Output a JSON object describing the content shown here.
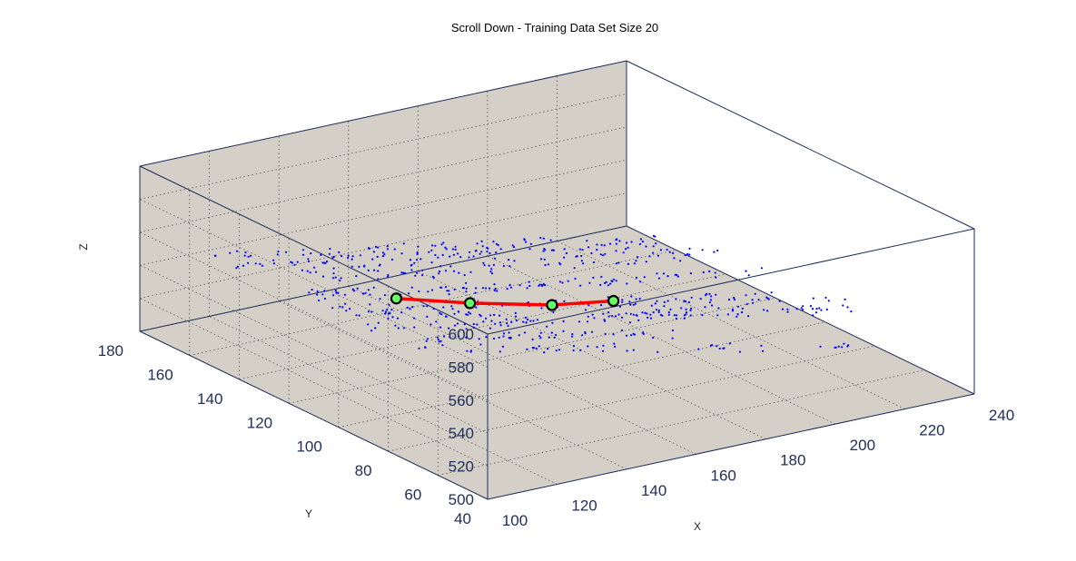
{
  "chart_data": {
    "type": "scatter",
    "title": "Scroll Down - Training Data Set Size 20",
    "xlabel": "X",
    "ylabel": "Y",
    "zlabel": "Z",
    "xlim": [
      100,
      240
    ],
    "ylim": [
      40,
      180
    ],
    "zlim": [
      500,
      600
    ],
    "x_ticks": [
      100,
      120,
      140,
      160,
      180,
      200,
      220,
      240
    ],
    "y_ticks": [
      40,
      60,
      80,
      100,
      120,
      140,
      160,
      180
    ],
    "z_ticks": [
      500,
      520,
      540,
      560,
      580,
      600
    ],
    "grid": true,
    "legend": "none",
    "colors": {
      "pane": "#d4d0c8",
      "points": "#0000ff",
      "path": "#ff0000",
      "marker_fill": "#66ff66",
      "axis": "#1f2d5a"
    },
    "point_count": 700,
    "path_points": [
      {
        "x": 133.9,
        "y": 124.2,
        "z": 545
      },
      {
        "x": 146.6,
        "y": 112.3,
        "z": 545
      },
      {
        "x": 162.1,
        "y": 101.0,
        "z": 545
      },
      {
        "x": 176.0,
        "y": 95.7,
        "z": 545
      }
    ]
  }
}
